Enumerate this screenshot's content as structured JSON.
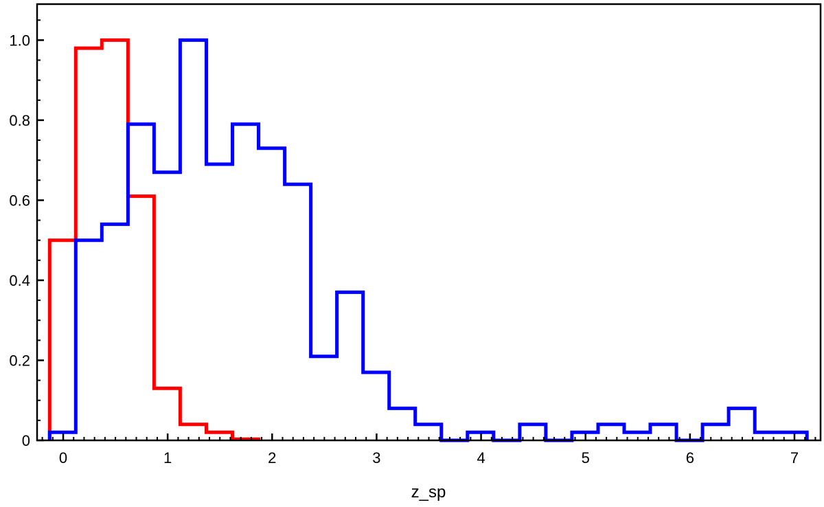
{
  "chart_data": {
    "type": "step",
    "xlabel": "z_sp",
    "ylabel": "",
    "xlim": [
      -0.25,
      7.25
    ],
    "ylim": [
      0,
      1.09
    ],
    "x_ticks": [
      0,
      1,
      2,
      3,
      4,
      5,
      6,
      7
    ],
    "y_ticks": [
      0,
      0.2,
      0.4,
      0.6,
      0.8,
      1.0
    ],
    "x_tick_labels": [
      "0",
      "1",
      "2",
      "3",
      "4",
      "5",
      "6",
      "7"
    ],
    "y_tick_labels": [
      "0",
      "0.2",
      "0.4",
      "0.6",
      "0.8",
      "1.0"
    ],
    "grid": false,
    "legend": "none",
    "series": [
      {
        "color": "#ff0000",
        "bin_edges": [
          -0.13,
          0.12,
          0.37,
          0.62,
          0.87,
          1.12,
          1.37,
          1.62,
          1.87
        ],
        "values": [
          0.5,
          0.98,
          1.0,
          0.61,
          0.13,
          0.04,
          0.02,
          0.003
        ]
      },
      {
        "color": "#0000ff",
        "bin_edges": [
          -0.13,
          0.12,
          0.37,
          0.62,
          0.87,
          1.12,
          1.37,
          1.62,
          1.87,
          2.12,
          2.37,
          2.62,
          2.87,
          3.12,
          3.37,
          3.62,
          3.87,
          4.12,
          4.37,
          4.62,
          4.87,
          5.12,
          5.37,
          5.62,
          5.87,
          6.12,
          6.37,
          6.62,
          6.87,
          7.12
        ],
        "values": [
          0.02,
          0.5,
          0.54,
          0.79,
          0.67,
          1.0,
          0.69,
          0.79,
          0.73,
          0.64,
          0.21,
          0.37,
          0.17,
          0.08,
          0.04,
          0.0,
          0.02,
          0.0,
          0.04,
          0.0,
          0.02,
          0.04,
          0.02,
          0.04,
          0.0,
          0.04,
          0.08,
          0.02,
          0.02
        ]
      }
    ]
  }
}
